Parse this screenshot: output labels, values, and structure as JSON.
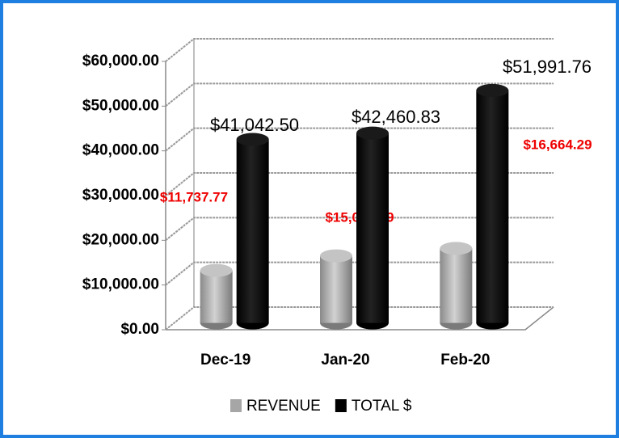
{
  "chart_data": {
    "type": "bar3d",
    "categories": [
      "Dec-19",
      "Jan-20",
      "Feb-20"
    ],
    "series": [
      {
        "name": "REVENUE",
        "color": "#a6a6a6",
        "label_color": "#ee0000",
        "values": [
          11737.77,
          15005.59,
          16664.29
        ],
        "value_labels": [
          "$11,737.77",
          "$15,005.59",
          "$16,664.29"
        ]
      },
      {
        "name": "TOTAL $",
        "color": "#000000",
        "label_color": "#000000",
        "values": [
          41042.5,
          42460.83,
          51991.76
        ],
        "value_labels": [
          "$41,042.50",
          "$42,460.83",
          "$51,991.76"
        ]
      }
    ],
    "ylim": [
      0,
      60000
    ],
    "yticks": [
      {
        "value": 0,
        "label": "$0.00"
      },
      {
        "value": 10000,
        "label": "$10,000.00"
      },
      {
        "value": 20000,
        "label": "$20,000.00"
      },
      {
        "value": 30000,
        "label": "$30,000.00"
      },
      {
        "value": 40000,
        "label": "$40,000.00"
      },
      {
        "value": 50000,
        "label": "$50,000.00"
      },
      {
        "value": 60000,
        "label": "$60,000.00"
      }
    ],
    "grid": true,
    "legend": "bottom"
  }
}
